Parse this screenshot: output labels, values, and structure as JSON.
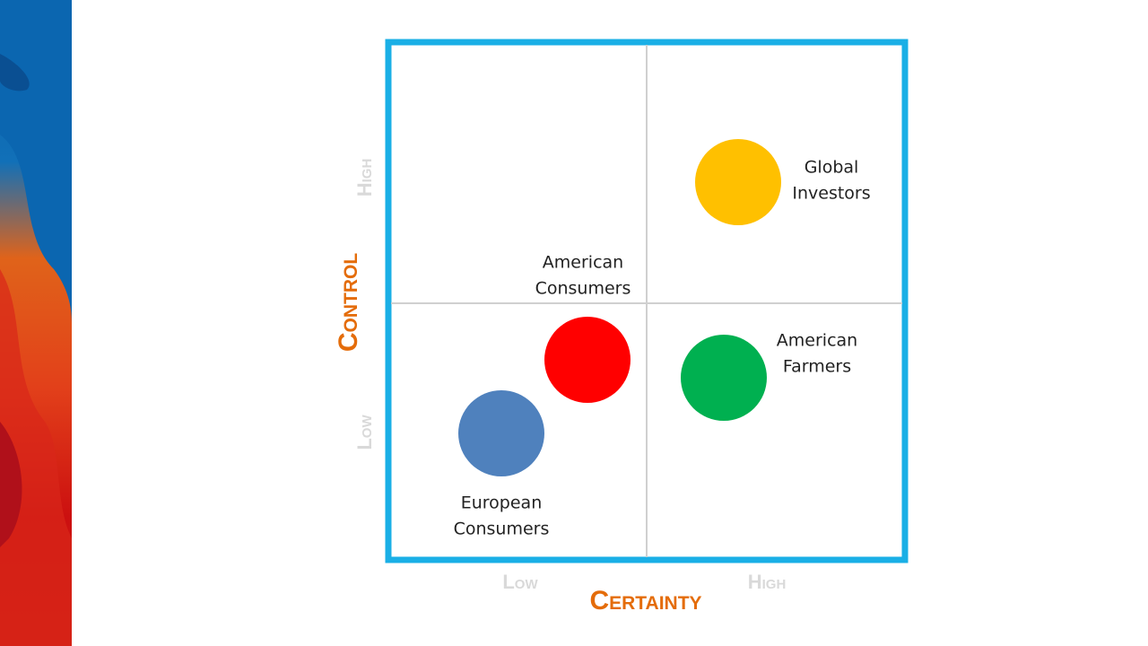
{
  "title_x": "Certainty",
  "title_y": "Control",
  "x_levels": [
    "Low",
    "High"
  ],
  "y_levels": [
    "Low",
    "High"
  ],
  "nodes": [
    {
      "lines": [
        "Global",
        "Investors"
      ],
      "color": "#ffc000"
    },
    {
      "lines": [
        "American",
        "Consumers"
      ],
      "color": "#ff0000"
    },
    {
      "lines": [
        "American",
        "Farmers"
      ],
      "color": "#00b050"
    },
    {
      "lines": [
        "European",
        "Consumers"
      ],
      "color": "#4f81bd"
    }
  ]
}
